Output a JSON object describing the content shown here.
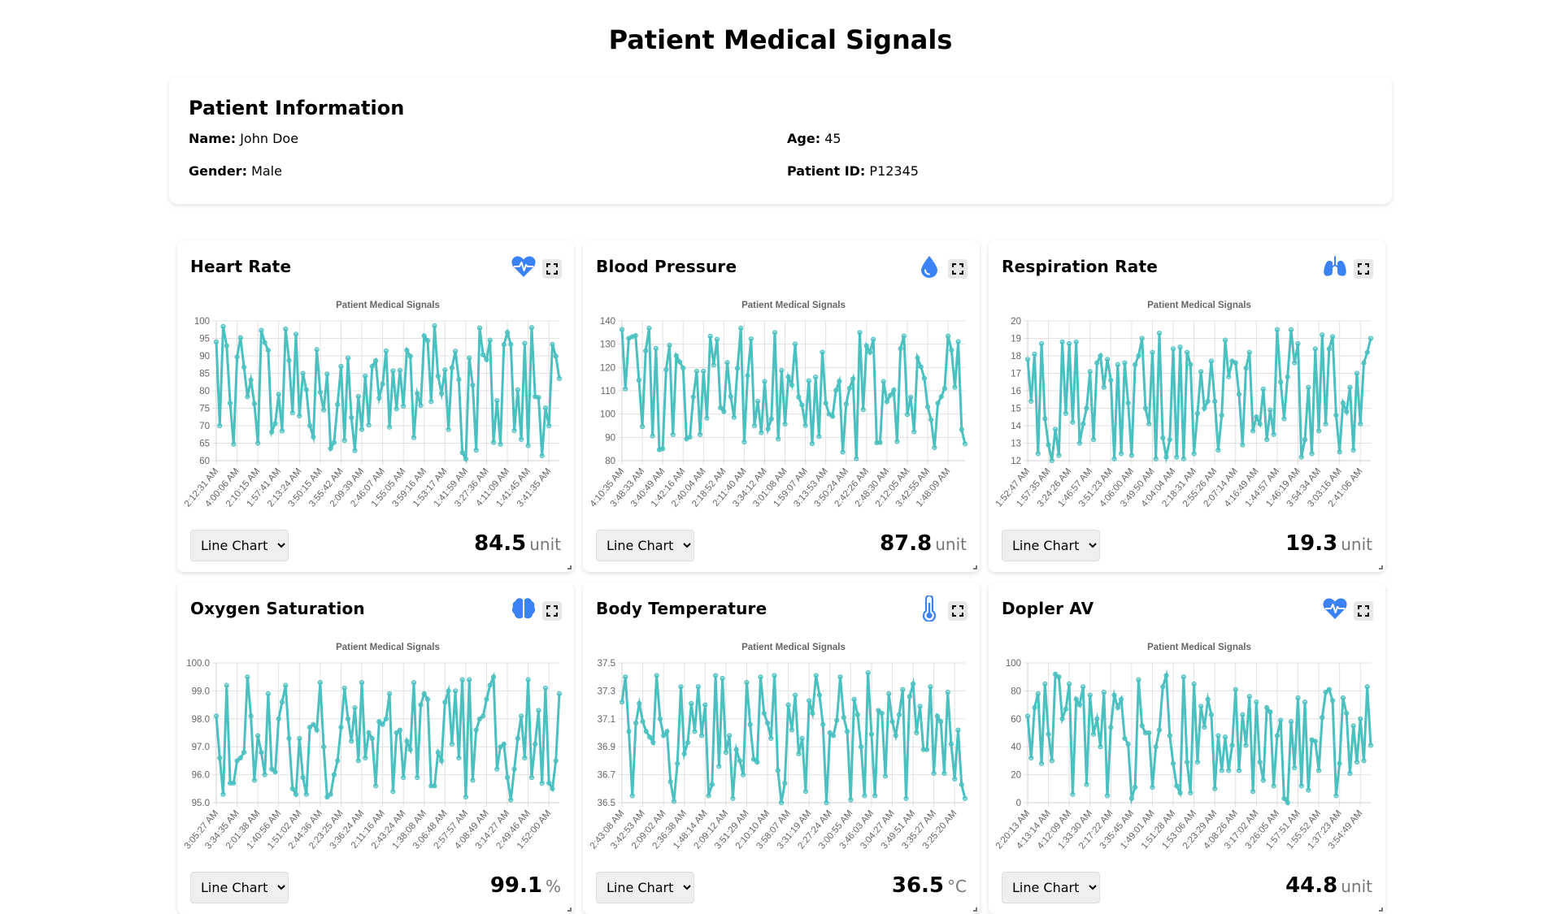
{
  "page": {
    "title": "Patient Medical Signals"
  },
  "patient": {
    "heading": "Patient Information",
    "name_label": "Name:",
    "name": "John Doe",
    "age_label": "Age:",
    "age": "45",
    "gender_label": "Gender:",
    "gender": "Male",
    "id_label": "Patient ID:",
    "id": "P12345"
  },
  "colors": {
    "line": "#4bc0c0",
    "icon": "#3b82f6",
    "grid": "#e1e1e1",
    "tick_text": "#666666"
  },
  "chart_type_options": [
    "Line Chart"
  ],
  "cards": [
    {
      "title": "Heart Rate",
      "icon": "heart-pulse-icon",
      "chart_type": "Line Chart",
      "value": "84.5",
      "unit": "unit",
      "chart_data": {
        "type": "line",
        "title": "Patient Medical Signals",
        "ylim": [
          60,
          100
        ],
        "yticks": [
          "60",
          "65",
          "70",
          "75",
          "80",
          "85",
          "90",
          "95",
          "100"
        ],
        "xtick_labels": [
          "2:12:31 AM",
          "4:00:06 AM",
          "2:10:15 AM",
          "1:57:41 AM",
          "2:13:24 AM",
          "3:50:15 AM",
          "3:55:42 AM",
          "2:09:39 AM",
          "2:46:07 AM",
          "1:55:05 AM",
          "3:59:16 AM",
          "1:53:17 AM",
          "1:41:59 AM",
          "3:27:36 AM",
          "4:11:09 AM",
          "1:41:45 AM",
          "3:41:35 AM"
        ],
        "values": [
          94,
          70,
          98.4,
          92.9,
          76.4,
          64.7,
          89.7,
          95.2,
          86.8,
          78.3,
          83.1,
          76.3,
          65,
          97.3,
          93.8,
          91.6,
          68.2,
          70.6,
          79,
          68.5,
          97.7,
          88.7,
          73.7,
          96.2,
          72.8,
          85,
          80.3,
          70,
          66.8,
          91.8,
          79.6,
          74.5,
          84.8,
          63.5,
          65.2,
          76.1,
          87,
          65.8,
          89.4,
          72.3,
          62.9,
          78.4,
          68.9,
          84.2,
          70.2,
          87,
          88.6,
          77.9,
          81.9,
          91.4,
          69.6,
          85.7,
          74.8,
          85.9,
          75.6,
          91.6,
          89.9,
          66.6,
          79.2,
          75.8,
          95.7,
          94.4,
          76.9,
          98.6,
          84.2,
          79.2,
          86,
          68.9,
          86.6,
          91.3,
          83.2,
          62.3,
          60.5,
          89.4,
          81.6,
          63,
          98,
          90.3,
          88.9,
          94.5,
          65.2,
          77.2,
          64.7,
          93.2,
          96.7,
          93.3,
          68.6,
          80.3,
          66.1,
          93.6,
          64.3,
          98.1,
          78.3,
          78.1,
          61.4,
          75.1,
          70,
          93.3,
          89.9,
          83.5
        ]
      }
    },
    {
      "title": "Blood Pressure",
      "icon": "blood-drop-icon",
      "chart_type": "Line Chart",
      "value": "87.8",
      "unit": "unit",
      "chart_data": {
        "type": "line",
        "title": "Patient Medical Signals",
        "ylim": [
          80,
          140
        ],
        "yticks": [
          "80",
          "90",
          "100",
          "110",
          "120",
          "130",
          "140"
        ],
        "xtick_labels": [
          "4:10:35 AM",
          "3:48:33 AM",
          "3:40:49 AM",
          "1:42:16 AM",
          "2:40:04 AM",
          "2:18:52 AM",
          "2:11:40 AM",
          "3:34:12 AM",
          "3:01:08 AM",
          "1:59:07 AM",
          "3:13:53 AM",
          "3:50:24 AM",
          "2:42:26 AM",
          "2:48:30 AM",
          "2:12:05 AM",
          "3:42:55 AM",
          "1:48:09 AM"
        ],
        "values": [
          136.3,
          110.8,
          132.5,
          133.2,
          133.7,
          114.6,
          94.6,
          127.2,
          136.9,
          90.6,
          128.2,
          84.7,
          85.1,
          119.1,
          129.6,
          91.2,
          125,
          122.4,
          119.8,
          89.3,
          90.1,
          107.3,
          118.4,
          91.2,
          118.4,
          98.2,
          133.4,
          121.1,
          132.1,
          102.7,
          101.1,
          122.1,
          107.6,
          98.6,
          119.7,
          136.9,
          88,
          116.5,
          132.3,
          95,
          105.5,
          92,
          114,
          93.6,
          97.9,
          135,
          89.3,
          118.7,
          95.7,
          116,
          112.5,
          130.1,
          107.3,
          103.9,
          95.1,
          114.3,
          87.3,
          115.9,
          90.4,
          126.6,
          104.7,
          100,
          99,
          110.2,
          114.1,
          83.7,
          104.3,
          111.1,
          115.1,
          80.8,
          135,
          101.9,
          129.3,
          126.5,
          132.1,
          87.7,
          87.8,
          114,
          105.4,
          108.1,
          110.3,
          88.2,
          128.1,
          133.5,
          99.8,
          107.3,
          92.4,
          124.2,
          120.3,
          115.4,
          103.1,
          97.6,
          85.6,
          104.7,
          107.5,
          111,
          133.5,
          127.5,
          111.5,
          131.1,
          93.3,
          87.2
        ]
      }
    },
    {
      "title": "Respiration Rate",
      "icon": "lungs-icon",
      "chart_type": "Line Chart",
      "value": "19.3",
      "unit": "unit",
      "chart_data": {
        "type": "line",
        "title": "Patient Medical Signals",
        "ylim": [
          12,
          20
        ],
        "yticks": [
          "12",
          "13",
          "14",
          "15",
          "16",
          "17",
          "18",
          "19",
          "20"
        ],
        "xtick_labels": [
          "1:52:47 AM",
          "1:57:35 AM",
          "3:24:26 AM",
          "1:46:57 AM",
          "3:51:23 AM",
          "4:06:00 AM",
          "3:49:50 AM",
          "4:04:04 AM",
          "2:18:31 AM",
          "2:55:26 AM",
          "2:07:14 AM",
          "4:16:49 AM",
          "1:44:57 AM",
          "1:46:19 AM",
          "3:54:34 AM",
          "3:03:16 AM",
          "2:41:06 AM"
        ],
        "values": [
          17.8,
          15.4,
          18.1,
          12.4,
          18.7,
          14.4,
          12.9,
          12,
          13.8,
          12.3,
          18.8,
          14.7,
          18.7,
          14.2,
          18.8,
          13,
          14.1,
          15,
          17.1,
          13.2,
          17.6,
          18,
          16.2,
          17.8,
          16.6,
          12.1,
          17.5,
          12.4,
          17.6,
          15.3,
          12.3,
          17.5,
          18,
          19,
          15,
          14.1,
          18.2,
          12.1,
          19.3,
          13.3,
          12.2,
          13.2,
          18.4,
          12.2,
          18.5,
          12.1,
          18.2,
          17.5,
          12.4,
          14.7,
          17.1,
          15,
          15.4,
          17.7,
          15.4,
          12.6,
          14.6,
          18.9,
          16.8,
          17.7,
          17.6,
          15.8,
          12.9,
          17.3,
          18.2,
          13.7,
          14.5,
          14.1,
          16.1,
          13.2,
          14.9,
          13.5,
          19.5,
          16.5,
          14.4,
          16.8,
          19.5,
          17.6,
          18.7,
          12.2,
          13.2,
          16.2,
          12.4,
          18.4,
          13.7,
          19.2,
          14.1,
          18.4,
          19.1,
          14.6,
          12.5,
          15.3,
          14.8,
          16.2,
          12.6,
          17,
          14.1,
          17.6,
          18.2,
          19
        ]
      }
    },
    {
      "title": "Oxygen Saturation",
      "icon": "brain-icon",
      "chart_type": "Line Chart",
      "value": "99.1",
      "unit": "%",
      "chart_data": {
        "type": "line",
        "title": "Patient Medical Signals",
        "ylim": [
          95,
          100
        ],
        "yticks": [
          "95.0",
          "96.0",
          "97.0",
          "98.0",
          "99.0",
          "100.0"
        ],
        "xtick_labels": [
          "3:05:27 AM",
          "3:34:35 AM",
          "2:01:38 AM",
          "1:40:56 AM",
          "1:51:02 AM",
          "2:44:36 AM",
          "2:23:25 AM",
          "3:36:24 AM",
          "2:11:16 AM",
          "2:43:24 AM",
          "1:38:08 AM",
          "3:06:48 AM",
          "2:57:57 AM",
          "4:08:49 AM",
          "3:14:27 AM",
          "2:49:46 AM",
          "1:52:00 AM"
        ],
        "values": [
          98.1,
          96.6,
          95.3,
          99.2,
          95.7,
          95.7,
          96.5,
          96.6,
          96.8,
          99.5,
          98.1,
          95.8,
          97.4,
          96.8,
          96,
          98.9,
          96.2,
          96.1,
          98,
          98.6,
          99.2,
          97.3,
          95.5,
          95.3,
          97.3,
          95.9,
          95.3,
          97.7,
          97.8,
          97.6,
          99.3,
          97,
          95.2,
          95.3,
          96,
          96.5,
          97.7,
          99.1,
          98,
          97.2,
          98.4,
          96.5,
          99.3,
          96.6,
          97.5,
          97.3,
          95.6,
          97.9,
          97.8,
          98,
          98.9,
          95.4,
          97.5,
          97.6,
          95.9,
          97.2,
          96.9,
          99.3,
          95.9,
          98.5,
          98.9,
          98.7,
          95.6,
          95.6,
          96.8,
          96.5,
          98.6,
          99,
          97.1,
          99,
          96.6,
          99.4,
          95.2,
          99.4,
          95.8,
          97.6,
          98,
          98.1,
          98.7,
          99.2,
          99.5,
          96.2,
          97,
          97.1,
          95.9,
          95.1,
          96.2,
          97.3,
          98.1,
          96.6,
          99.4,
          95.9,
          97.1,
          98.3,
          95.7,
          99.1,
          95.7,
          95.5,
          96.5,
          98.9
        ]
      }
    },
    {
      "title": "Body Temperature",
      "icon": "thermometer-icon",
      "chart_type": "Line Chart",
      "value": "36.5",
      "unit": "°C",
      "chart_data": {
        "type": "line",
        "title": "Patient Medical Signals",
        "ylim": [
          36.5,
          37.5
        ],
        "yticks": [
          "36.5",
          "36.7",
          "36.9",
          "37.1",
          "37.3",
          "37.5"
        ],
        "xtick_labels": [
          "2:43:08 AM",
          "3:42:53 AM",
          "2:09:02 AM",
          "2:36:38 AM",
          "1:48:14 AM",
          "2:09:12 AM",
          "3:51:29 AM",
          "2:10:10 AM",
          "3:58:07 AM",
          "3:31:19 AM",
          "2:27:24 AM",
          "3:00:55 AM",
          "3:46:03 AM",
          "3:04:27 AM",
          "3:49:51 AM",
          "3:35:27 AM",
          "3:25:20 AM"
        ],
        "values": [
          37.22,
          37.4,
          37.01,
          36.55,
          37.07,
          37.21,
          37.08,
          37.01,
          36.97,
          36.93,
          37.41,
          37.1,
          36.98,
          37.01,
          36.65,
          36.51,
          36.78,
          37.33,
          36.85,
          36.93,
          37.21,
          37.01,
          37.33,
          36.98,
          37.2,
          36.55,
          36.63,
          37.41,
          36.76,
          37.39,
          36.86,
          36.98,
          36.53,
          36.88,
          36.8,
          36.7,
          37.36,
          37.06,
          36.81,
          36.79,
          37.4,
          37.14,
          37.07,
          36.96,
          37.41,
          36.73,
          36.5,
          36.64,
          37.2,
          37.02,
          37.27,
          36.85,
          36.96,
          36.58,
          37.23,
          37.14,
          37.41,
          37.27,
          37.06,
          36.5,
          37,
          36.98,
          37.09,
          37.4,
          37.11,
          37.01,
          36.52,
          37.24,
          37.13,
          36.9,
          36.55,
          37.43,
          36.99,
          36.55,
          37.16,
          37.14,
          36.69,
          37.28,
          37.08,
          36.98,
          37.13,
          37.31,
          36.53,
          37.26,
          37.35,
          37,
          37.19,
          36.88,
          36.88,
          37.33,
          36.71,
          37.12,
          37.08,
          36.71,
          37.29,
          36.92,
          36.67,
          37.02,
          36.63,
          36.53
        ]
      }
    },
    {
      "title": "Dopler AV",
      "icon": "heart-pulse-icon",
      "chart_type": "Line Chart",
      "value": "44.8",
      "unit": "unit",
      "chart_data": {
        "type": "line",
        "title": "Patient Medical Signals",
        "ylim": [
          0,
          100
        ],
        "yticks": [
          "0",
          "20",
          "40",
          "60",
          "80",
          "100"
        ],
        "xtick_labels": [
          "2:20:13 AM",
          "4:13:14 AM",
          "4:12:09 AM",
          "1:33:30 AM",
          "2:17:22 AM",
          "3:35:45 AM",
          "1:49:01 AM",
          "1:51:28 AM",
          "1:53:06 AM",
          "2:23:29 AM",
          "4:08:26 AM",
          "3:17:02 AM",
          "3:26:05 AM",
          "1:57:51 AM",
          "1:55:52 AM",
          "1:37:23 AM",
          "3:54:49 AM"
        ],
        "values": [
          62,
          32,
          68,
          78,
          28,
          85,
          49,
          30,
          92,
          90,
          60,
          67,
          85,
          6,
          74,
          70,
          83,
          13,
          77,
          49,
          60,
          40,
          79,
          5,
          54,
          77,
          68,
          74,
          46,
          42,
          3,
          11,
          88,
          55,
          50,
          50,
          11,
          40,
          52,
          83,
          91,
          48,
          28,
          12,
          7,
          90,
          29,
          7,
          85,
          29,
          69,
          54,
          74,
          63,
          10,
          48,
          23,
          47,
          23,
          41,
          81,
          23,
          63,
          41,
          76,
          8,
          72,
          29,
          16,
          68,
          65,
          12,
          48,
          59,
          3,
          0,
          58,
          25,
          75,
          12,
          72,
          9,
          45,
          44,
          23,
          61,
          79,
          81,
          73,
          5,
          28,
          75,
          64,
          21,
          55,
          29,
          60,
          30,
          83,
          41
        ]
      }
    }
  ]
}
